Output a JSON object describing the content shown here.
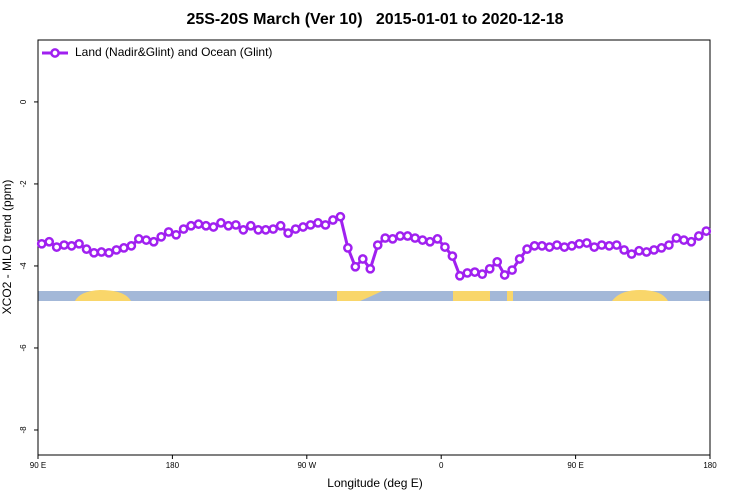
{
  "chart_data": {
    "type": "line",
    "title": "25S-20S March (Ver 10)   2015-01-01 to 2020-12-18",
    "x_label": "Longitude (deg E)",
    "y_label": "XCO2 - MLO trend (ppm)",
    "xlim": [
      90,
      540
    ],
    "ylim": [
      -8.61,
      1.51
    ],
    "xticks": [
      {
        "value": 90,
        "label": "90 E"
      },
      {
        "value": 180,
        "label": "180"
      },
      {
        "value": 270,
        "label": "90 W"
      },
      {
        "value": 360,
        "label": "0"
      },
      {
        "value": 450,
        "label": "90 E"
      },
      {
        "value": 540,
        "label": "180"
      }
    ],
    "yticks": [
      0,
      -2,
      -4,
      -6,
      -8
    ],
    "legend": "top-left",
    "series": [
      {
        "name": "Land (Nadir&Glint) and Ocean (Glint)",
        "color": "#a020f0",
        "x": [
          92.5,
          97.5,
          102.5,
          107.5,
          112.5,
          117.5,
          122.5,
          127.5,
          132.5,
          137.5,
          142.5,
          147.5,
          152.5,
          157.5,
          162.5,
          167.5,
          172.5,
          177.5,
          182.5,
          187.5,
          192.5,
          197.5,
          202.5,
          207.5,
          212.5,
          217.5,
          222.5,
          227.5,
          232.5,
          237.5,
          242.5,
          247.5,
          252.5,
          257.5,
          262.5,
          267.5,
          272.5,
          277.5,
          282.5,
          287.5,
          292.5,
          297.5,
          302.5,
          307.5,
          312.5,
          317.5,
          322.5,
          327.5,
          332.5,
          337.5,
          342.5,
          347.5,
          352.5,
          357.5,
          362.5,
          367.5,
          372.5,
          377.5,
          382.5,
          387.5,
          392.5,
          397.5,
          402.5,
          407.5,
          412.5,
          417.5,
          422.5,
          427.5,
          432.5,
          437.5,
          442.5,
          447.5,
          452.5,
          457.5,
          462.5,
          467.5,
          472.5,
          477.5,
          482.5,
          487.5,
          492.5,
          497.5,
          502.5,
          507.5,
          512.5,
          517.5,
          522.5,
          527.5,
          532.5,
          537.5
        ],
        "values": [
          -3.46,
          -3.41,
          -3.54,
          -3.49,
          -3.51,
          -3.46,
          -3.59,
          -3.68,
          -3.66,
          -3.68,
          -3.61,
          -3.56,
          -3.51,
          -3.34,
          -3.37,
          -3.41,
          -3.29,
          -3.17,
          -3.24,
          -3.1,
          -3.02,
          -2.98,
          -3.02,
          -3.05,
          -2.95,
          -3.02,
          -3.0,
          -3.12,
          -3.02,
          -3.12,
          -3.12,
          -3.1,
          -3.02,
          -3.2,
          -3.1,
          -3.05,
          -3.0,
          -2.95,
          -3.0,
          -2.88,
          -2.8,
          -3.56,
          -4.02,
          -3.83,
          -4.07,
          -3.49,
          -3.32,
          -3.34,
          -3.27,
          -3.27,
          -3.32,
          -3.37,
          -3.41,
          -3.34,
          -3.54,
          -3.76,
          -4.24,
          -4.17,
          -4.15,
          -4.2,
          -4.07,
          -3.9,
          -4.22,
          -4.1,
          -3.83,
          -3.59,
          -3.51,
          -3.51,
          -3.54,
          -3.49,
          -3.54,
          -3.51,
          -3.46,
          -3.44,
          -3.54,
          -3.49,
          -3.51,
          -3.49,
          -3.61,
          -3.71,
          -3.63,
          -3.66,
          -3.61,
          -3.56,
          -3.49,
          -3.32,
          -3.37,
          -3.41,
          -3.27,
          -3.15
        ]
      }
    ]
  }
}
